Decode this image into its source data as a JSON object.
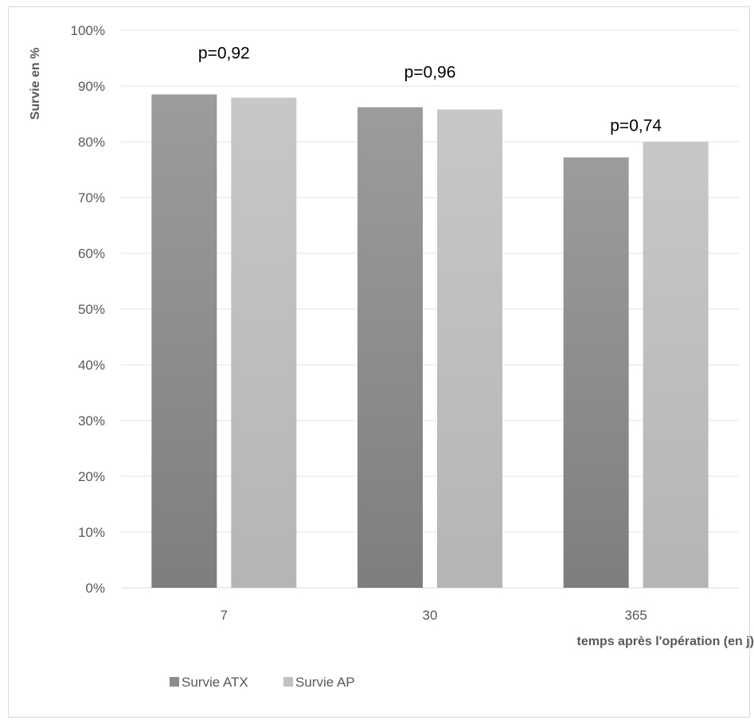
{
  "chart_data": {
    "type": "bar",
    "title": "",
    "xlabel": "temps après l'opération (en j)",
    "ylabel": "Survie en %",
    "categories": [
      "7",
      "30",
      "365"
    ],
    "series": [
      {
        "name": "Survie ATX",
        "values": [
          88.5,
          86.2,
          77.2
        ],
        "color": "#8c8d8f"
      },
      {
        "name": "Survie AP",
        "values": [
          87.9,
          85.8,
          80.0
        ],
        "color": "#c0c1c3"
      }
    ],
    "ylim": [
      0,
      100
    ],
    "yticks": [
      "0%",
      "10%",
      "20%",
      "30%",
      "40%",
      "50%",
      "60%",
      "70%",
      "80%",
      "90%",
      "100%"
    ],
    "annotations": [
      "p=0,92",
      "p=0,96",
      "p=0,74"
    ],
    "grid": true,
    "legend_position": "bottom-left"
  }
}
